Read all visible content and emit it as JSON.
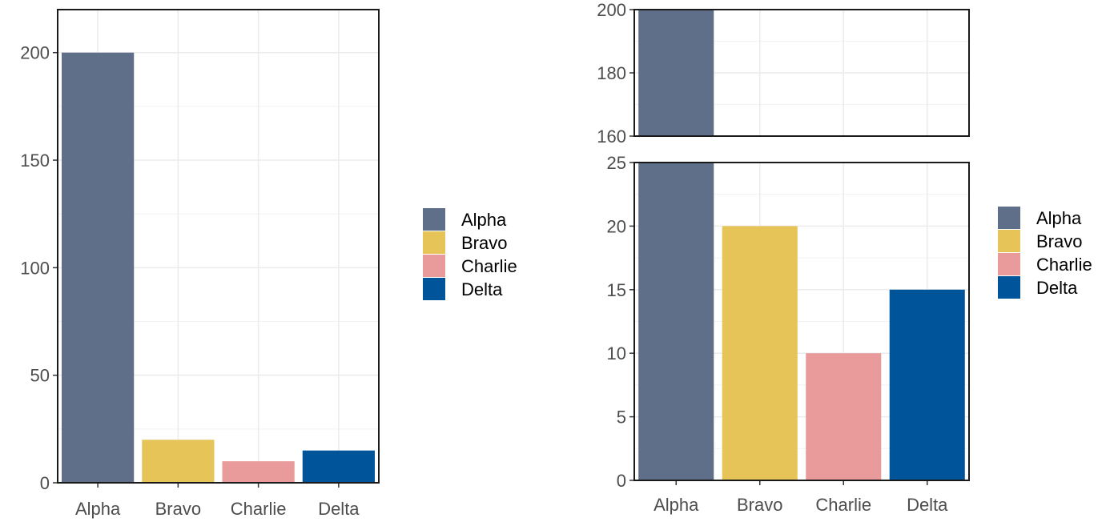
{
  "chart_data": [
    {
      "type": "bar",
      "panel": "full",
      "categories": [
        "Alpha",
        "Bravo",
        "Charlie",
        "Delta"
      ],
      "values": [
        200,
        20,
        10,
        15
      ],
      "ylim": [
        0,
        220
      ],
      "yticks": [
        "0",
        "50",
        "100",
        "150",
        "200"
      ],
      "grid": true,
      "legend": {
        "position": "right",
        "entries": [
          "Alpha",
          "Bravo",
          "Charlie",
          "Delta"
        ]
      },
      "title": "",
      "xlabel": "",
      "ylabel": ""
    },
    {
      "type": "bar",
      "panel": "broken-axis",
      "categories": [
        "Alpha",
        "Bravo",
        "Charlie",
        "Delta"
      ],
      "values": [
        200,
        20,
        10,
        15
      ],
      "segments": [
        {
          "name": "upper",
          "ylim": [
            160,
            200
          ],
          "yticks": [
            "160",
            "180",
            "200"
          ]
        },
        {
          "name": "lower",
          "ylim": [
            0,
            25
          ],
          "yticks": [
            "0",
            "5",
            "10",
            "15",
            "20",
            "25"
          ]
        }
      ],
      "grid": true,
      "legend": {
        "position": "right",
        "entries": [
          "Alpha",
          "Bravo",
          "Charlie",
          "Delta"
        ]
      },
      "title": "",
      "xlabel": "",
      "ylabel": ""
    }
  ],
  "colors": {
    "Alpha": "#5f6e89",
    "Bravo": "#e6c458",
    "Charlie": "#e99b9b",
    "Delta": "#00559a"
  }
}
